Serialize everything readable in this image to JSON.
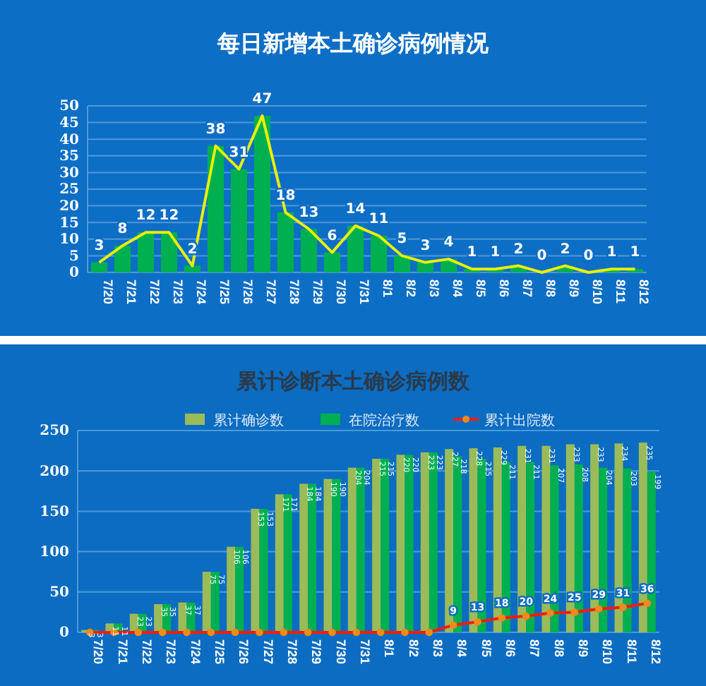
{
  "chart_data": [
    {
      "type": "bar",
      "title": "每日新增本土确诊病例情况",
      "categories": [
        "7/20",
        "7/21",
        "7/22",
        "7/23",
        "7/24",
        "7/25",
        "7/26",
        "7/27",
        "7/28",
        "7/29",
        "7/30",
        "7/31",
        "8/1",
        "8/2",
        "8/3",
        "8/4",
        "8/5",
        "8/6",
        "8/7",
        "8/8",
        "8/9",
        "8/10",
        "8/11",
        "8/12"
      ],
      "series": [
        {
          "color": "#00b050",
          "values": [
            3,
            8,
            12,
            12,
            2,
            38,
            31,
            47,
            18,
            13,
            6,
            14,
            11,
            5,
            3,
            4,
            1,
            1,
            2,
            0,
            2,
            0,
            1,
            1
          ]
        },
        {
          "type": "line",
          "color": "#e8f000",
          "values": [
            3,
            8,
            12,
            12,
            2,
            38,
            31,
            47,
            18,
            13,
            6,
            14,
            11,
            5,
            3,
            4,
            1,
            1,
            2,
            0,
            2,
            0,
            1,
            1
          ],
          "value_labels": [
            "3",
            "8",
            "12",
            "12",
            "2",
            "38",
            "31",
            "47",
            "18",
            "13",
            "6",
            "14",
            "11",
            "5",
            "3",
            "4",
            "1",
            "1",
            "2",
            "0",
            "2",
            "0",
            "1",
            "1"
          ]
        }
      ],
      "ylim": [
        0,
        50
      ],
      "yticks": [
        0,
        5,
        10,
        15,
        20,
        25,
        30,
        35,
        40,
        45,
        50
      ],
      "grid": "y",
      "legend": false,
      "marker": "none"
    },
    {
      "type": "bar",
      "title": "累计诊断本土确诊病例数",
      "categories": [
        "7/20",
        "7/21",
        "7/22",
        "7/23",
        "7/24",
        "7/25",
        "7/26",
        "7/27",
        "7/28",
        "7/29",
        "7/30",
        "7/31",
        "8/1",
        "8/2",
        "8/3",
        "8/4",
        "8/5",
        "8/6",
        "8/7",
        "8/8",
        "8/9",
        "8/10",
        "8/11",
        "8/12"
      ],
      "series": [
        {
          "name": "累计确诊数",
          "color": "#9bbb59",
          "values": [
            3,
            11,
            23,
            35,
            37,
            75,
            106,
            153,
            171,
            184,
            190,
            204,
            215,
            220,
            223,
            227,
            228,
            229,
            231,
            231,
            233,
            233,
            234,
            235
          ],
          "value_labels": [
            "3",
            "11",
            "23",
            "35",
            "37",
            "75",
            "106",
            "153",
            "171",
            "184",
            "190",
            "204",
            "215",
            "220",
            "223",
            "227",
            "228",
            "229",
            "231",
            "231",
            "233",
            "233",
            "234",
            "235"
          ]
        },
        {
          "name": "在院治疗数",
          "color": "#00b050",
          "values": [
            3,
            11,
            23,
            35,
            37,
            75,
            106,
            153,
            171,
            184,
            190,
            204,
            215,
            220,
            223,
            218,
            215,
            211,
            211,
            207,
            208,
            204,
            203,
            199
          ],
          "value_labels": [
            "3",
            "11",
            "23",
            "35",
            "37",
            "75",
            "106",
            "153",
            "171",
            "184",
            "190",
            "204",
            "215",
            "220",
            "223",
            "218",
            "215",
            "211",
            "211",
            "207",
            "208",
            "204",
            "203",
            "199"
          ]
        },
        {
          "type": "line",
          "name": "累计出院数",
          "color": "#ff1a00",
          "values": [
            0,
            0,
            0,
            0,
            0,
            0,
            0,
            0,
            0,
            0,
            0,
            0,
            0,
            0,
            0,
            9,
            13,
            18,
            20,
            24,
            25,
            29,
            31,
            36
          ],
          "value_labels": [
            null,
            null,
            null,
            null,
            null,
            null,
            null,
            null,
            null,
            null,
            null,
            null,
            null,
            null,
            null,
            "9",
            "13",
            "18",
            "20",
            "24",
            "25",
            "29",
            "31",
            "36"
          ]
        }
      ],
      "ylim": [
        0,
        250
      ],
      "yticks": [
        0,
        50,
        100,
        150,
        200,
        250
      ],
      "grid": "y",
      "legend": "top",
      "marker": "circle"
    }
  ]
}
